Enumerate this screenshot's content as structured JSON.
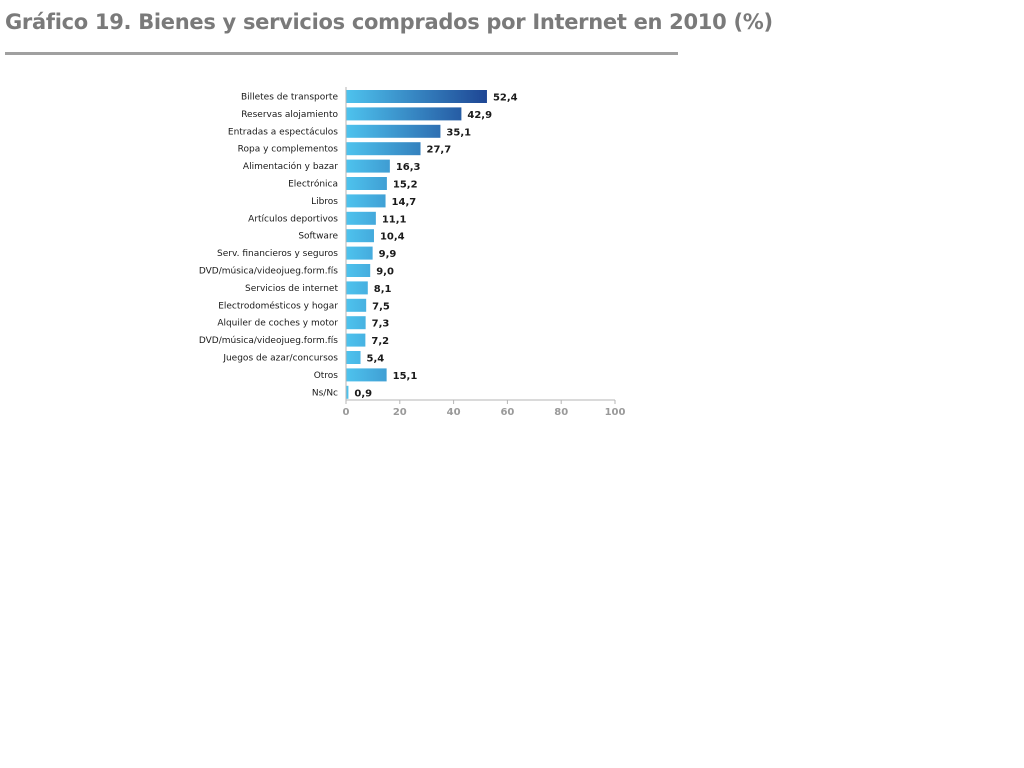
{
  "chart_data": {
    "type": "bar",
    "orientation": "horizontal",
    "title": "Gráfico 19. Bienes y servicios comprados por Internet en 2010 (%)",
    "xlabel": "",
    "ylabel": "",
    "xlim": [
      0,
      100
    ],
    "ticks": [
      0,
      20,
      40,
      60,
      80,
      100
    ],
    "grid": false,
    "categories": [
      "Billetes de transporte",
      "Reservas alojamiento",
      "Entradas a espectáculos",
      "Ropa y complementos",
      "Alimentación y bazar",
      "Electrónica",
      "Libros",
      "Artículos deportivos",
      "Software",
      "Serv. financieros y seguros",
      "DVD/música/videojueg.form.fís",
      "Servicios de internet",
      "Electrodomésticos  y hogar",
      "Alquiler de coches y motor",
      "DVD/música/videojueg.form.fís",
      "Juegos de azar/concursos",
      "Otros",
      "Ns/Nc"
    ],
    "values": [
      52.4,
      42.9,
      35.1,
      27.7,
      16.3,
      15.2,
      14.7,
      11.1,
      10.4,
      9.9,
      9.0,
      8.1,
      7.5,
      7.3,
      7.2,
      5.4,
      15.1,
      0.9
    ],
    "value_labels": [
      "52,4",
      "42,9",
      "35,1",
      "27,7",
      "16,3",
      "15,2",
      "14,7",
      "11,1",
      "10,4",
      "9,9",
      "9,0",
      "8,1",
      "7,5",
      "7,3",
      "7,2",
      "5,4",
      "15,1",
      "0,9"
    ],
    "colors": {
      "bar_light": "#4ec3ee",
      "bar_dark": "#1b3f8f",
      "axis": "#b5b5b5",
      "tick_text": "#9a9a9a"
    }
  }
}
